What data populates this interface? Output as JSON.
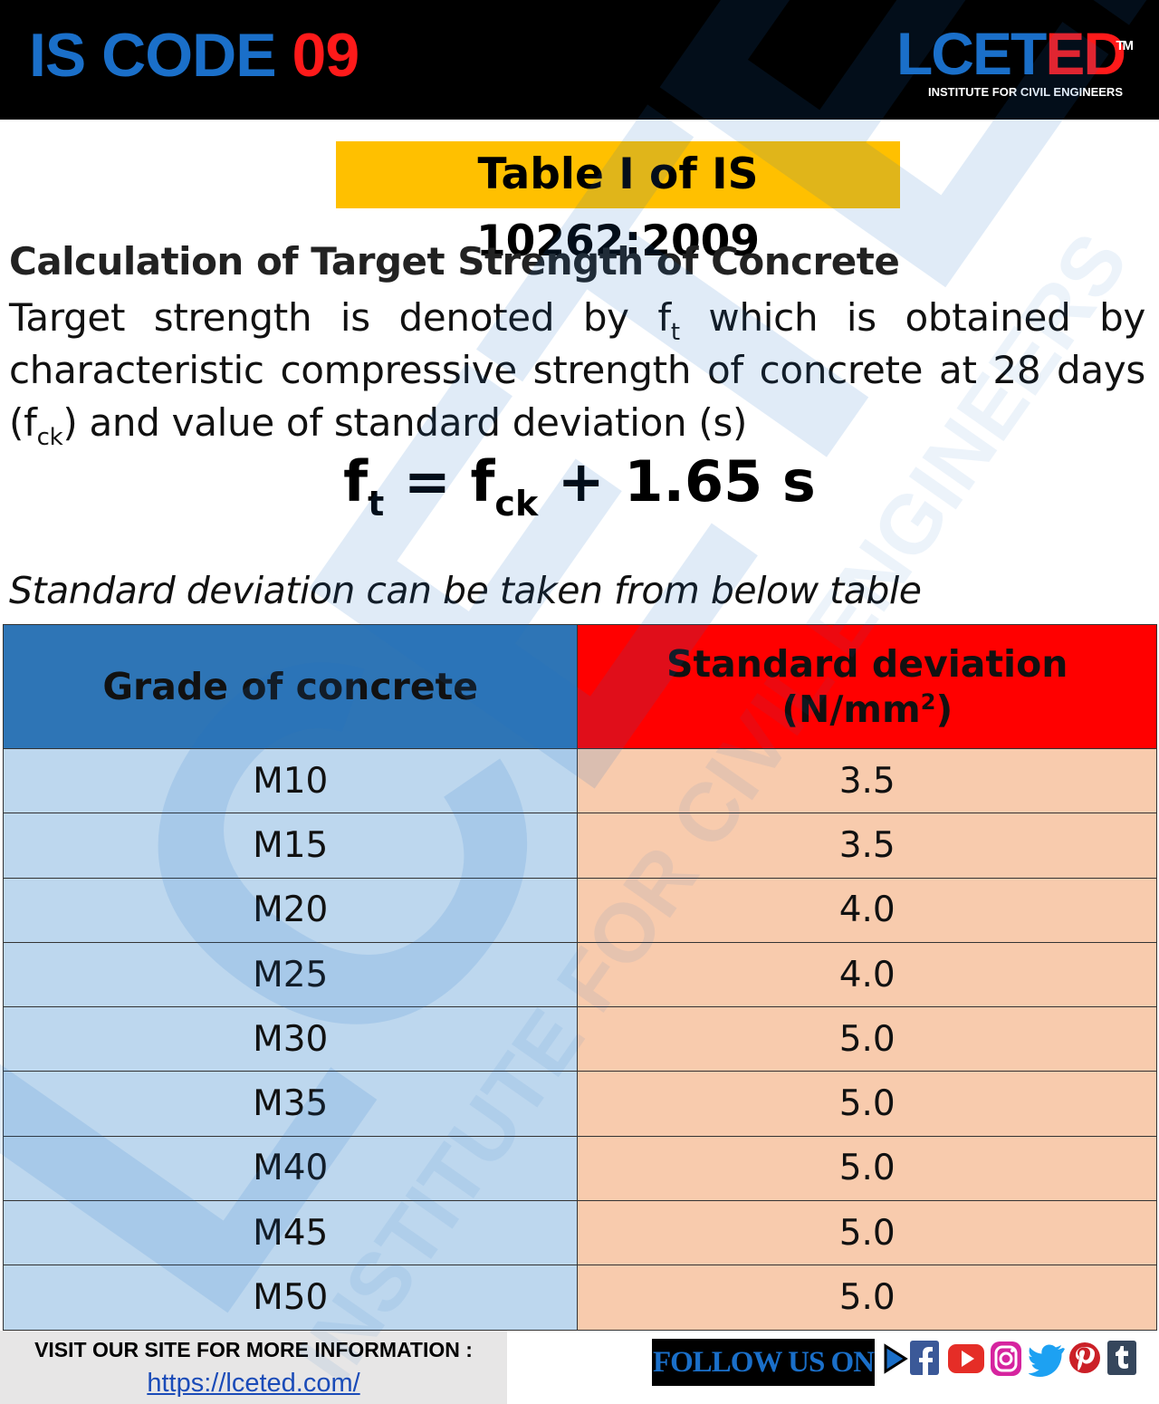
{
  "header": {
    "title_part1": "IS CODE ",
    "title_part2": "09",
    "brand_part1": "LCET",
    "brand_part2": "ED",
    "brand_tm": "TM",
    "brand_tagline": "INSTITUTE FOR CIVIL ENGINEERS"
  },
  "table_label": "Table I of IS 10262:2009",
  "section": {
    "heading": "Calculation of Target Strength of Concrete",
    "para_a": "Target strength is denoted by f",
    "para_a_sub": "t",
    "para_b": " which is obtained by characteristic compressive strength of concrete at 28 days (f",
    "para_b_sub": "ck",
    "para_c": ") and value of standard deviation (s)"
  },
  "formula": {
    "lhs": "f",
    "lhs_sub": "t",
    "eq": " = f",
    "mid_sub": "ck",
    "rhs": " + 1.65 s"
  },
  "note": "Standard deviation can be taken from below table",
  "table": {
    "header_grade": "Grade of concrete",
    "header_sd_line1": "Standard deviation",
    "header_sd_line2a": "(N/mm",
    "header_sd_sup": "2",
    "header_sd_line2b": ")",
    "rows": [
      {
        "grade": "M10",
        "sd": "3.5"
      },
      {
        "grade": "M15",
        "sd": "3.5"
      },
      {
        "grade": "M20",
        "sd": "4.0"
      },
      {
        "grade": "M25",
        "sd": "4.0"
      },
      {
        "grade": "M30",
        "sd": "5.0"
      },
      {
        "grade": "M35",
        "sd": "5.0"
      },
      {
        "grade": "M40",
        "sd": "5.0"
      },
      {
        "grade": "M45",
        "sd": "5.0"
      },
      {
        "grade": "M50",
        "sd": "5.0"
      }
    ]
  },
  "footer": {
    "visit_text": "VISIT OUR SITE FOR MORE INFORMATION :",
    "site_url": "https://lceted.com/",
    "follow_text": "FOLLOW US ON",
    "social_icons": [
      "play-icon",
      "facebook-icon",
      "youtube-icon",
      "instagram-icon",
      "twitter-icon",
      "pinterest-icon",
      "tumblr-icon"
    ]
  },
  "watermark": {
    "word": "LCETED",
    "tagline": "INSTITUTE FOR CIVIL ENGINEERS"
  },
  "colors": {
    "brand_blue": "#1a6fc9",
    "brand_red": "#ff1a1a",
    "label_yellow": "#ffc000",
    "header_grade_bg": "#2e75b6",
    "header_sd_bg": "#ff0000",
    "grade_cell_bg": "#bdd7ee",
    "sd_cell_bg": "#f8cbad"
  }
}
